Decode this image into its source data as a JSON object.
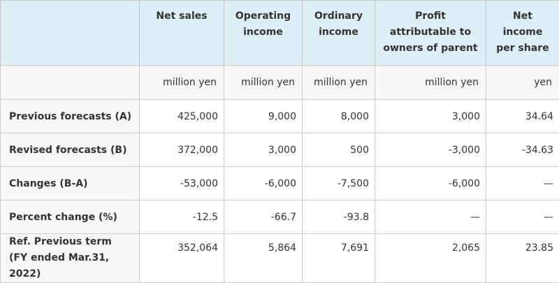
{
  "table": {
    "headers": [
      "Net sales",
      "Operating income",
      "Ordinary income",
      "Profit attributable to owners of parent",
      "Net income per share"
    ],
    "header_lines": [
      [
        "Net sales"
      ],
      [
        "Operating",
        "income"
      ],
      [
        "Ordinary",
        "income"
      ],
      [
        "Profit",
        "attributable to",
        "owners of parent"
      ],
      [
        "Net",
        "income",
        "per share"
      ]
    ],
    "units": [
      "million yen",
      "million yen",
      "million yen",
      "million yen",
      "yen"
    ],
    "rows": [
      {
        "label": [
          "Previous forecasts (A)"
        ],
        "values": [
          "425,000",
          "9,000",
          "8,000",
          "3,000",
          "34.64"
        ]
      },
      {
        "label": [
          "Revised forecasts (B)"
        ],
        "values": [
          "372,000",
          "3,000",
          "500",
          "-3,000",
          "-34.63"
        ]
      },
      {
        "label": [
          "Changes (B-A)"
        ],
        "values": [
          "-53,000",
          "-6,000",
          "-7,500",
          "-6,000",
          "—"
        ]
      },
      {
        "label": [
          "Percent change (%)"
        ],
        "values": [
          "-12.5",
          "-66.7",
          "-93.8",
          "—",
          "—"
        ]
      },
      {
        "label": [
          "Ref. Previous term",
          "(FY ended Mar.31, 2022)"
        ],
        "values": [
          "352,064",
          "5,864",
          "7,691",
          "2,065",
          "23.85"
        ]
      }
    ]
  }
}
